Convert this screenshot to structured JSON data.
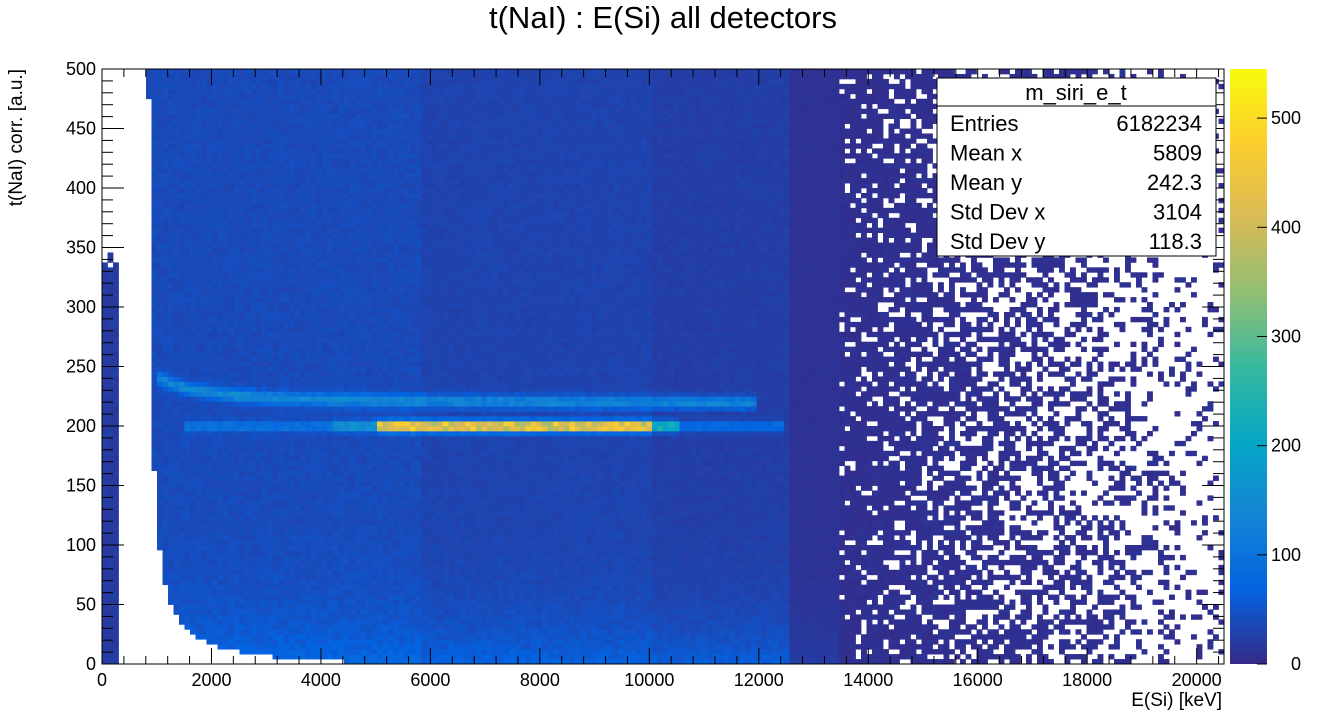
{
  "chart_data": {
    "type": "heatmap",
    "title": "t(NaI) : E(Si) all detectors",
    "xlabel": "E(Si) [keV]",
    "ylabel": "t(NaI) corr. [a.u.]",
    "xlim": [
      0,
      20500
    ],
    "ylim": [
      0,
      500
    ],
    "x_ticks": [
      0,
      2000,
      4000,
      6000,
      8000,
      10000,
      12000,
      14000,
      16000,
      18000,
      20000
    ],
    "y_ticks": [
      0,
      50,
      100,
      150,
      200,
      250,
      300,
      350,
      400,
      450,
      500
    ],
    "colorbar": {
      "range": [
        0,
        545
      ],
      "ticks": [
        0,
        100,
        200,
        300,
        400,
        500
      ],
      "palette": [
        "#352a87",
        "#0363e1",
        "#1485d4",
        "#06a7c6",
        "#38b99e",
        "#92bf73",
        "#d9ba56",
        "#fcce2e",
        "#f9fb0e"
      ]
    },
    "features": [
      {
        "name": "band",
        "y": 200,
        "x_range": [
          1500,
          12500
        ],
        "peak_x_range": [
          5000,
          10000
        ],
        "peak_value": 540
      },
      {
        "name": "curve",
        "asymptote_y": 222,
        "x_range": [
          1000,
          12000
        ],
        "peak_value": 260
      }
    ],
    "stats_box": {
      "title": "m_siri_e_t",
      "rows": [
        {
          "label": "Entries",
          "value": "6182234"
        },
        {
          "label": "Mean x",
          "value": "5809"
        },
        {
          "label": "Mean y",
          "value": "242.3"
        },
        {
          "label": "Std Dev x",
          "value": "3104"
        },
        {
          "label": "Std Dev y",
          "value": "118.3"
        }
      ]
    }
  }
}
